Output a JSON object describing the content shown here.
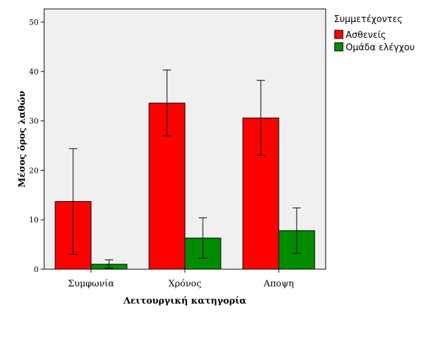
{
  "chart_data": {
    "type": "bar",
    "categories": [
      "Συμφωνία",
      "Χρόνος",
      "Αποψη"
    ],
    "series": [
      {
        "name": "Ασθενείς",
        "color": "#ff0000",
        "values": [
          13.7,
          33.6,
          30.6
        ],
        "err_low": [
          3.0,
          27.0,
          23.0
        ],
        "err_high": [
          24.4,
          40.3,
          38.2
        ]
      },
      {
        "name": "Ομάδα ελέγχου",
        "color": "#008c00",
        "values": [
          1.0,
          6.3,
          7.8
        ],
        "err_low": [
          0.2,
          2.2,
          3.2
        ],
        "err_high": [
          1.9,
          10.4,
          12.4
        ]
      }
    ],
    "xlabel": "Λειτουργική κατηγορία",
    "ylabel": "Μέσος όρος λαθών",
    "ylim": [
      0,
      50
    ],
    "yticks": [
      0,
      10,
      20,
      30,
      40,
      50
    ],
    "legend": {
      "title": "Συμμετέχοντες",
      "placement": "right"
    },
    "plot_background": "#f0f0f0"
  }
}
